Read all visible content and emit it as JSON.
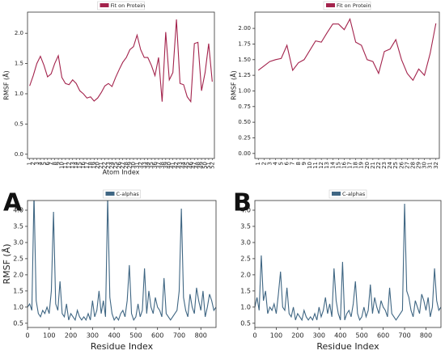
{
  "panel_labels": [
    "A",
    "B"
  ],
  "chart_data": [
    {
      "type": "line",
      "ylabel": "RMSF (Å)",
      "xlabel": "Atom Index",
      "series": [
        {
          "name": "Fit on Protein",
          "color": "#a3234c",
          "values": [
            1.13,
            1.3,
            1.5,
            1.62,
            1.47,
            1.28,
            1.33,
            1.5,
            1.63,
            1.27,
            1.17,
            1.15,
            1.23,
            1.17,
            1.05,
            1.0,
            0.93,
            0.95,
            0.88,
            0.93,
            1.02,
            1.13,
            1.17,
            1.12,
            1.27,
            1.4,
            1.52,
            1.6,
            1.73,
            1.78,
            1.97,
            1.73,
            1.6,
            1.6,
            1.47,
            1.3,
            1.6,
            0.87,
            2.02,
            1.23,
            1.35,
            2.23,
            1.17,
            1.15,
            0.95,
            0.87,
            1.83,
            1.85,
            1.05,
            1.35,
            1.83,
            1.2
          ]
        }
      ],
      "categories": [
        "1",
        "2",
        "3",
        "4",
        "5",
        "6",
        "7",
        "8",
        "9",
        "10",
        "11",
        "12",
        "13",
        "14",
        "15",
        "16",
        "17",
        "18",
        "19",
        "20",
        "21",
        "22",
        "23",
        "24",
        "25",
        "26",
        "27",
        "28",
        "29",
        "30",
        "31",
        "32",
        "33",
        "34",
        "35",
        "36",
        "37",
        "38",
        "39",
        "40",
        "41",
        "42",
        "43",
        "44",
        "45",
        "46",
        "47",
        "48",
        "49",
        "50",
        "51",
        "52"
      ],
      "ylim": [
        -0.07,
        2.35
      ],
      "yticks": [
        {
          "value": 0,
          "label": "0.0"
        },
        0.5,
        {
          "value": 1,
          "label": "1.0"
        },
        1.5,
        {
          "value": 2,
          "label": "2.0"
        }
      ]
    },
    {
      "type": "line",
      "ylabel": "RMSF (Å)",
      "series": [
        {
          "name": "Fit on Protein",
          "color": "#a3234c",
          "values": [
            1.33,
            1.4,
            1.47,
            1.5,
            1.52,
            1.73,
            1.33,
            1.45,
            1.5,
            1.65,
            1.8,
            1.78,
            1.93,
            2.07,
            2.07,
            1.98,
            2.15,
            1.78,
            1.73,
            1.5,
            1.47,
            1.28,
            1.63,
            1.67,
            1.82,
            1.5,
            1.28,
            1.17,
            1.35,
            1.25,
            1.6,
            2.08
          ]
        }
      ],
      "categories": [
        "1",
        "2",
        "3",
        "4",
        "5",
        "6",
        "7",
        "8",
        "9",
        "10",
        "11",
        "12",
        "13",
        "14",
        "15",
        "16",
        "17",
        "18",
        "19",
        "20",
        "21",
        "22",
        "23",
        "24",
        "25",
        "26",
        "27",
        "28",
        "29",
        "30",
        "31",
        "32"
      ],
      "ylim": [
        -0.08,
        2.26
      ],
      "yticks": [
        {
          "value": 0,
          "label": "0.00"
        },
        0.25,
        {
          "value": 0.5,
          "label": "0.50"
        },
        0.75,
        {
          "value": 1,
          "label": "1.00"
        },
        1.25,
        {
          "value": 1.5,
          "label": "1.50"
        },
        1.75,
        {
          "value": 2,
          "label": "2.00"
        }
      ]
    },
    {
      "type": "line",
      "ylabel": "RMSF (Å)",
      "xlabel": "Residue Index",
      "series": [
        {
          "name": "C-alphas",
          "color": "#3f6683",
          "values": [
            1.0,
            1.1,
            0.9,
            4.5,
            1.2,
            0.8,
            0.7,
            0.9,
            0.8,
            1.0,
            0.8,
            1.5,
            3.95,
            1.1,
            0.9,
            1.8,
            0.8,
            0.7,
            1.1,
            0.6,
            0.8,
            0.7,
            0.6,
            0.9,
            0.7,
            0.6,
            0.7,
            0.6,
            0.8,
            0.6,
            1.2,
            0.7,
            0.9,
            1.5,
            0.8,
            1.2,
            0.7,
            4.4,
            1.3,
            0.8,
            0.6,
            0.7,
            0.6,
            0.8,
            0.9,
            0.7,
            1.2,
            2.3,
            0.8,
            0.6,
            0.7,
            1.1,
            0.7,
            0.9,
            2.2,
            0.8,
            1.5,
            1.0,
            0.8,
            1.3,
            1.0,
            0.9,
            0.7,
            1.9,
            0.8,
            0.7,
            0.6,
            0.7,
            0.8,
            0.9,
            1.5,
            4.05,
            1.3,
            0.9,
            0.7,
            1.4,
            1.0,
            0.8,
            1.6,
            1.2,
            0.9,
            1.5,
            0.7,
            1.0,
            1.4,
            1.2,
            0.9,
            1.0
          ]
        }
      ],
      "x": [
        0,
        10,
        20,
        30,
        40,
        50,
        60,
        70,
        80,
        90,
        100,
        110,
        120,
        130,
        140,
        150,
        160,
        170,
        180,
        190,
        200,
        210,
        220,
        230,
        240,
        250,
        260,
        270,
        280,
        290,
        300,
        310,
        320,
        330,
        340,
        350,
        360,
        370,
        380,
        390,
        400,
        410,
        420,
        430,
        440,
        450,
        460,
        470,
        480,
        490,
        500,
        510,
        520,
        530,
        540,
        550,
        560,
        570,
        580,
        590,
        600,
        610,
        620,
        630,
        640,
        650,
        660,
        670,
        680,
        690,
        700,
        710,
        720,
        730,
        740,
        750,
        760,
        770,
        780,
        790,
        800,
        810,
        820,
        830,
        840,
        850,
        860,
        870
      ],
      "xlim": [
        0,
        870
      ],
      "xticks": [
        0,
        100,
        200,
        300,
        400,
        500,
        600,
        700,
        800
      ],
      "ylim": [
        0.37,
        4.3
      ],
      "yticks": [
        0.5,
        {
          "value": 1,
          "label": "1.0"
        },
        1.5,
        {
          "value": 2,
          "label": "2.0"
        },
        2.5,
        {
          "value": 3,
          "label": "3.0"
        },
        3.5,
        {
          "value": 4,
          "label": "4.0"
        }
      ]
    },
    {
      "type": "line",
      "xlabel": "Residue Index",
      "series": [
        {
          "name": "C-alphas",
          "color": "#3f6683",
          "values": [
            1.0,
            1.3,
            0.9,
            2.6,
            1.2,
            1.5,
            0.8,
            1.0,
            0.9,
            1.1,
            0.8,
            1.4,
            2.1,
            1.0,
            0.9,
            1.6,
            0.8,
            0.7,
            1.0,
            0.6,
            0.8,
            0.7,
            0.6,
            0.9,
            0.7,
            0.6,
            0.7,
            0.6,
            0.8,
            0.6,
            1.0,
            0.7,
            0.9,
            1.3,
            0.8,
            1.1,
            0.7,
            2.2,
            1.2,
            0.8,
            0.6,
            2.4,
            0.6,
            0.8,
            0.9,
            0.7,
            1.1,
            1.8,
            0.8,
            0.6,
            0.7,
            1.0,
            0.7,
            0.9,
            1.7,
            0.8,
            1.3,
            1.0,
            0.8,
            1.2,
            1.0,
            0.9,
            0.7,
            1.6,
            0.8,
            0.7,
            0.6,
            0.7,
            0.8,
            0.9,
            4.2,
            1.5,
            1.3,
            0.9,
            0.7,
            1.2,
            1.0,
            0.8,
            1.4,
            1.2,
            0.9,
            1.3,
            0.7,
            1.0,
            2.2,
            1.2,
            0.9,
            1.0
          ]
        }
      ],
      "x": [
        0,
        10,
        20,
        30,
        40,
        50,
        60,
        70,
        80,
        90,
        100,
        110,
        120,
        130,
        140,
        150,
        160,
        170,
        180,
        190,
        200,
        210,
        220,
        230,
        240,
        250,
        260,
        270,
        280,
        290,
        300,
        310,
        320,
        330,
        340,
        350,
        360,
        370,
        380,
        390,
        400,
        410,
        420,
        430,
        440,
        450,
        460,
        470,
        480,
        490,
        500,
        510,
        520,
        530,
        540,
        550,
        560,
        570,
        580,
        590,
        600,
        610,
        620,
        630,
        640,
        650,
        660,
        670,
        680,
        690,
        700,
        710,
        720,
        730,
        740,
        750,
        760,
        770,
        780,
        790,
        800,
        810,
        820,
        830,
        840,
        850,
        860,
        870
      ],
      "xlim": [
        0,
        870
      ],
      "xticks": [
        0,
        100,
        200,
        300,
        400,
        500,
        600,
        700,
        800
      ],
      "ylim": [
        0.37,
        4.3
      ],
      "yticks": [
        0.5,
        {
          "value": 1,
          "label": "1.0"
        },
        1.5,
        {
          "value": 2,
          "label": "2.0"
        },
        2.5,
        {
          "value": 3,
          "label": "3.0"
        },
        3.5,
        {
          "value": 4,
          "label": "4.0"
        }
      ]
    }
  ]
}
